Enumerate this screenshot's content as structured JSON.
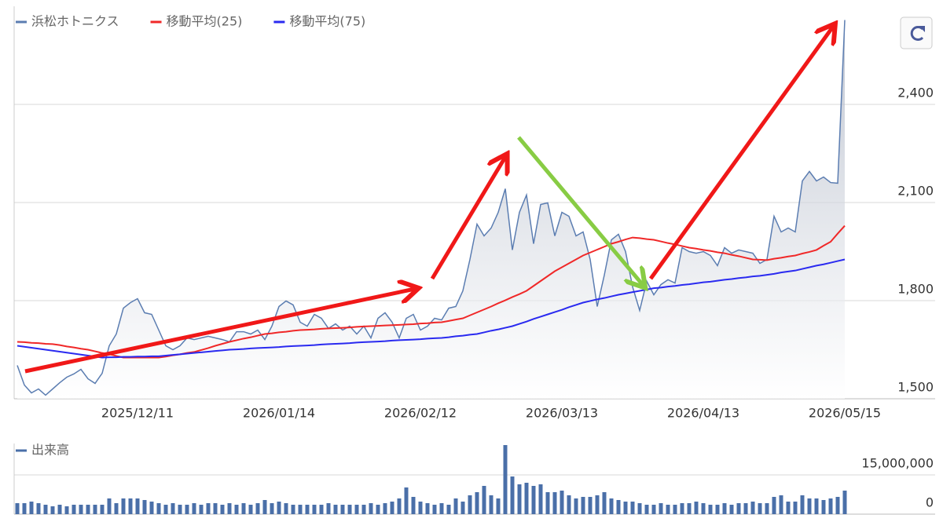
{
  "chart_data": [
    {
      "type": "line",
      "categories": [
        null,
        null,
        null,
        null,
        null,
        null,
        null,
        null,
        null,
        null,
        null,
        null,
        null,
        null,
        null,
        null,
        null,
        "2025/12/11",
        null,
        null,
        null,
        null,
        null,
        null,
        null,
        null,
        null,
        null,
        null,
        null,
        null,
        null,
        null,
        null,
        null,
        null,
        null,
        "2026/01/14",
        null,
        null,
        null,
        null,
        null,
        null,
        null,
        null,
        null,
        null,
        null,
        null,
        null,
        null,
        null,
        null,
        null,
        null,
        null,
        "2026/02/12",
        null,
        null,
        null,
        null,
        null,
        null,
        null,
        null,
        null,
        null,
        null,
        null,
        null,
        null,
        null,
        null,
        null,
        null,
        null,
        "2026/03/13",
        null,
        null,
        null,
        null,
        null,
        null,
        null,
        null,
        null,
        null,
        null,
        null,
        null,
        null,
        null,
        null,
        null,
        null,
        null,
        "2026/04/13",
        null,
        null,
        null,
        null,
        null,
        null,
        null,
        null,
        null,
        null,
        null,
        null,
        null,
        null,
        null,
        null,
        null,
        null,
        null,
        "2026/05/15"
      ],
      "series": [
        {
          "name": "浜松ホトニクス",
          "color": "#5b7db1",
          "values": [
            1602,
            1542,
            1518,
            1530,
            1511,
            1530,
            1549,
            1566,
            1576,
            1590,
            1561,
            1547,
            1578,
            1662,
            1698,
            1777,
            1794,
            1806,
            1763,
            1758,
            1710,
            1662,
            1650,
            1662,
            1686,
            1681,
            1686,
            1691,
            1686,
            1681,
            1674,
            1705,
            1705,
            1698,
            1710,
            1681,
            1722,
            1782,
            1799,
            1787,
            1734,
            1722,
            1758,
            1746,
            1715,
            1729,
            1710,
            1722,
            1698,
            1722,
            1686,
            1746,
            1763,
            1734,
            1686,
            1746,
            1758,
            1710,
            1722,
            1746,
            1741,
            1777,
            1782,
            1830,
            1926,
            2034,
            1998,
            2022,
            2070,
            2142,
            1955,
            2070,
            2123,
            1974,
            2094,
            2099,
            1998,
            2070,
            2058,
            1998,
            2010,
            1926,
            1782,
            1878,
            1986,
            2003,
            1950,
            1842,
            1770,
            1859,
            1818,
            1849,
            1864,
            1854,
            1962,
            1950,
            1945,
            1950,
            1938,
            1907,
            1962,
            1945,
            1955,
            1950,
            1945,
            1914,
            1926,
            2058,
            2010,
            2022,
            2010,
            2166,
            2195,
            2166,
            2178,
            2161,
            2159,
            2658
          ]
        },
        {
          "name": "移動平均(25)",
          "color": "#f02828",
          "values": [
            1674,
            1673,
            1671,
            1670,
            1668,
            1667,
            1664,
            1660,
            1657,
            1653,
            1650,
            1645,
            1640,
            1636,
            1631,
            1626,
            1626,
            1626,
            1626,
            1626,
            1626,
            1629,
            1633,
            1636,
            1640,
            1643,
            1649,
            1655,
            1662,
            1668,
            1674,
            1679,
            1684,
            1688,
            1693,
            1698,
            1700,
            1703,
            1705,
            1708,
            1710,
            1711,
            1712,
            1714,
            1715,
            1716,
            1717,
            1718,
            1720,
            1721,
            1722,
            1723,
            1724,
            1725,
            1726,
            1727,
            1728,
            1730,
            1731,
            1733,
            1734,
            1738,
            1742,
            1746,
            1755,
            1764,
            1773,
            1782,
            1792,
            1801,
            1811,
            1820,
            1830,
            1845,
            1860,
            1875,
            1890,
            1902,
            1914,
            1926,
            1938,
            1947,
            1956,
            1965,
            1974,
            1980,
            1987,
            1993,
            1991,
            1988,
            1986,
            1981,
            1976,
            1972,
            1967,
            1962,
            1959,
            1955,
            1952,
            1948,
            1945,
            1940,
            1936,
            1931,
            1926,
            1925,
            1924,
            1928,
            1931,
            1935,
            1938,
            1944,
            1949,
            1955,
            1968,
            1980,
            2005,
            2029
          ]
        },
        {
          "name": "移動平均(75)",
          "color": "#2a2af0",
          "values": [
            1662,
            1659,
            1656,
            1653,
            1650,
            1647,
            1644,
            1641,
            1638,
            1635,
            1632,
            1629,
            1626,
            1627,
            1627,
            1628,
            1628,
            1629,
            1629,
            1630,
            1630,
            1632,
            1634,
            1636,
            1638,
            1640,
            1642,
            1644,
            1646,
            1648,
            1650,
            1651,
            1652,
            1654,
            1655,
            1656,
            1657,
            1658,
            1660,
            1661,
            1662,
            1663,
            1664,
            1666,
            1667,
            1668,
            1669,
            1670,
            1672,
            1673,
            1674,
            1675,
            1676,
            1678,
            1679,
            1680,
            1681,
            1682,
            1684,
            1685,
            1686,
            1688,
            1691,
            1693,
            1696,
            1698,
            1703,
            1708,
            1712,
            1717,
            1722,
            1729,
            1736,
            1744,
            1751,
            1758,
            1765,
            1772,
            1780,
            1787,
            1794,
            1799,
            1804,
            1808,
            1813,
            1818,
            1822,
            1826,
            1830,
            1834,
            1838,
            1840,
            1843,
            1845,
            1848,
            1850,
            1853,
            1856,
            1858,
            1861,
            1864,
            1866,
            1869,
            1871,
            1874,
            1876,
            1879,
            1882,
            1886,
            1889,
            1892,
            1897,
            1902,
            1907,
            1911,
            1916,
            1921,
            1926
          ]
        }
      ],
      "ylim": [
        1500,
        2700
      ],
      "yticks": [
        {
          "value": 1500,
          "label": "1,500"
        },
        {
          "value": 1800,
          "label": "1,800"
        },
        {
          "value": 2100,
          "label": "2,100"
        },
        {
          "value": 2400,
          "label": "2,400"
        }
      ],
      "grid": true,
      "legend": "top-left"
    },
    {
      "type": "bar",
      "series": [
        {
          "name": "出来高",
          "color": "#4a6fa8",
          "values": [
            4200000,
            4200000,
            4800000,
            4200000,
            3600000,
            3000000,
            3600000,
            3000000,
            3600000,
            3600000,
            3600000,
            3600000,
            3600000,
            6000000,
            4200000,
            6000000,
            6000000,
            6000000,
            5400000,
            4800000,
            4200000,
            3600000,
            4200000,
            3600000,
            3600000,
            4200000,
            3600000,
            4200000,
            4200000,
            3600000,
            4200000,
            3600000,
            4200000,
            3600000,
            4200000,
            5400000,
            4200000,
            4800000,
            4200000,
            3600000,
            3600000,
            3600000,
            3600000,
            3600000,
            4200000,
            3600000,
            3600000,
            3600000,
            3600000,
            3600000,
            4200000,
            3600000,
            4200000,
            4800000,
            6000000,
            10200000,
            6600000,
            4800000,
            4200000,
            3600000,
            4200000,
            3600000,
            6000000,
            4800000,
            7200000,
            8400000,
            10800000,
            7200000,
            6000000,
            26400000,
            14400000,
            11400000,
            12000000,
            10800000,
            11400000,
            8400000,
            8400000,
            9000000,
            7200000,
            6000000,
            6600000,
            6600000,
            7200000,
            8400000,
            6000000,
            5400000,
            4800000,
            4800000,
            4200000,
            3600000,
            3600000,
            4200000,
            3600000,
            3600000,
            4200000,
            4200000,
            4800000,
            4200000,
            3600000,
            3600000,
            4200000,
            3600000,
            4200000,
            4200000,
            4800000,
            4200000,
            4200000,
            6600000,
            7200000,
            4800000,
            4800000,
            7200000,
            6000000,
            6000000,
            5400000,
            6000000,
            6600000,
            9000000
          ]
        }
      ],
      "ylim": [
        0,
        27000000
      ],
      "yticks": [
        0,
        {
          "value": 15000000,
          "label": "15,000,000"
        }
      ],
      "grid": true,
      "legend": "top-left"
    }
  ]
}
